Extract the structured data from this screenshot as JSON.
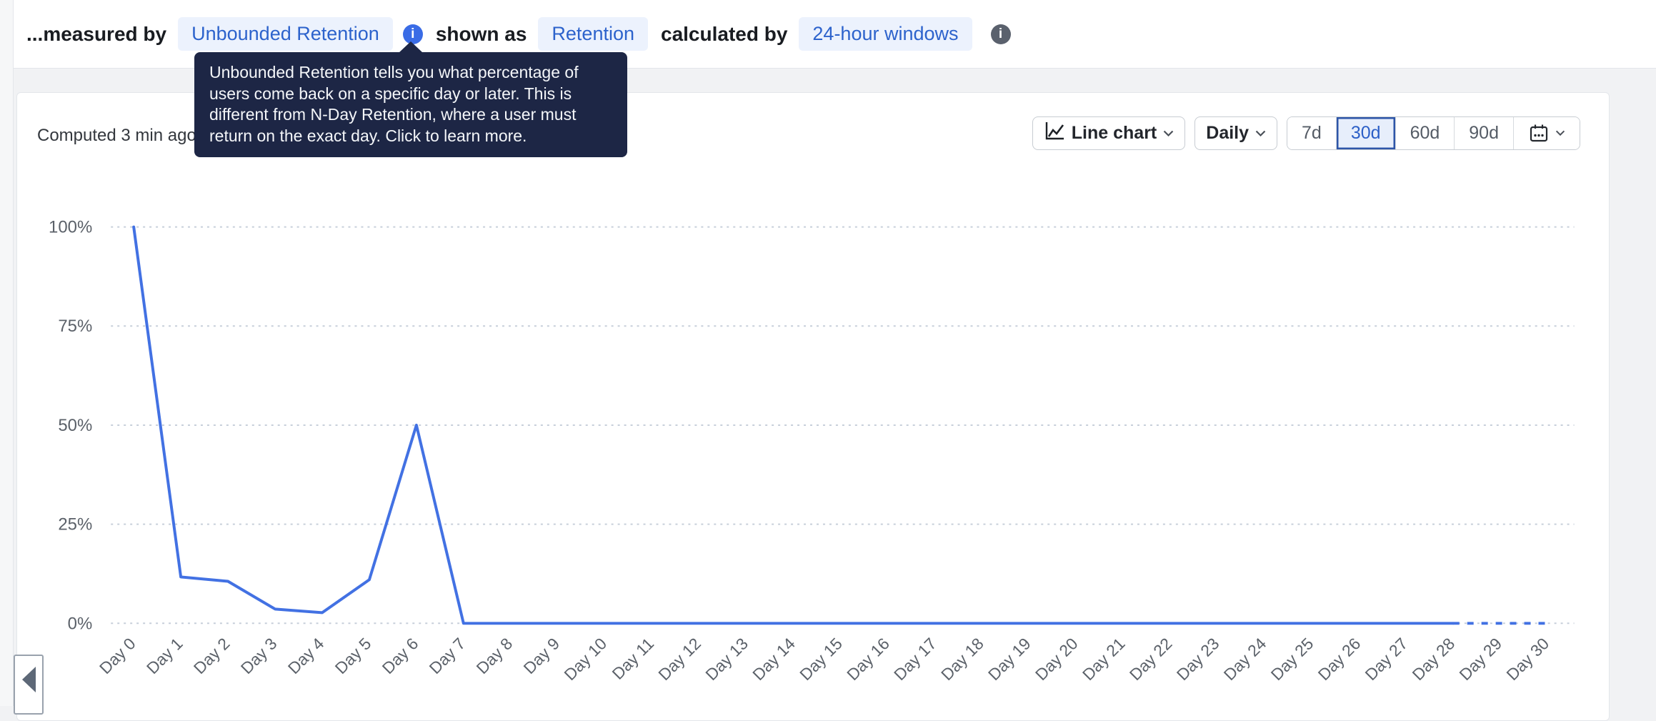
{
  "topbar": {
    "prefix": "...measured by",
    "measure_pill": "Unbounded Retention",
    "shown_as_label": "shown as",
    "shown_pill": "Retention",
    "calculated_label": "calculated by",
    "window_pill": "24-hour windows",
    "info_icons": [
      "info-icon-blue",
      "info-icon-gray"
    ]
  },
  "tooltip": {
    "lines": [
      "Unbounded Retention tells you what percentage of",
      "users come back on a specific day or later. This is",
      "different from N-Day Retention, where a user must",
      "return on the exact day. Click to learn more."
    ]
  },
  "panel": {
    "computed_status": "Computed 3 min ago",
    "controls": {
      "chart_type_label": "Line chart",
      "granularity_label": "Daily",
      "ranges": [
        "7d",
        "30d",
        "60d",
        "90d"
      ],
      "selected_range": "30d",
      "icons": [
        "line-chart-icon",
        "chevron-down-icon",
        "calendar-icon"
      ]
    }
  },
  "sidebar": {
    "collapse_icon": "left-arrow-icon"
  },
  "colors": {
    "line": "#4271e3",
    "grid": "#c7cfda",
    "axis_text": "#5b6169",
    "pill_bg": "#ecf2fd",
    "pill_text": "#2d63cc",
    "tooltip_bg": "#1d2645",
    "selected_range_bg": "#e7eefb",
    "selected_range_border": "#2d55a8",
    "selected_range_text": "#2c5fc7"
  },
  "chart_data": {
    "type": "line",
    "title": "",
    "xlabel": "",
    "ylabel": "",
    "x": [
      "Day 0",
      "Day 1",
      "Day 2",
      "Day 3",
      "Day 4",
      "Day 5",
      "Day 6",
      "Day 7",
      "Day 8",
      "Day 9",
      "Day 10",
      "Day 11",
      "Day 12",
      "Day 13",
      "Day 14",
      "Day 15",
      "Day 16",
      "Day 17",
      "Day 18",
      "Day 19",
      "Day 20",
      "Day 21",
      "Day 22",
      "Day 23",
      "Day 24",
      "Day 25",
      "Day 26",
      "Day 27",
      "Day 28",
      "Day 29",
      "Day 30"
    ],
    "series": [
      {
        "name": "Retention",
        "values": [
          100,
          11.7,
          10.6,
          3.6,
          2.7,
          11,
          50,
          0,
          0,
          0,
          0,
          0,
          0,
          0,
          0,
          0,
          0,
          0,
          0,
          0,
          0,
          0,
          0,
          0,
          0,
          0,
          0,
          0,
          0,
          0,
          0
        ]
      }
    ],
    "ylim": [
      0,
      100
    ],
    "ytick_labels": [
      "0%",
      "25%",
      "50%",
      "75%",
      "100%"
    ],
    "ytick_values": [
      0,
      25,
      50,
      75,
      100
    ],
    "grid": "horizontal-dotted",
    "legend": "none",
    "dashed_from_index": 28
  }
}
